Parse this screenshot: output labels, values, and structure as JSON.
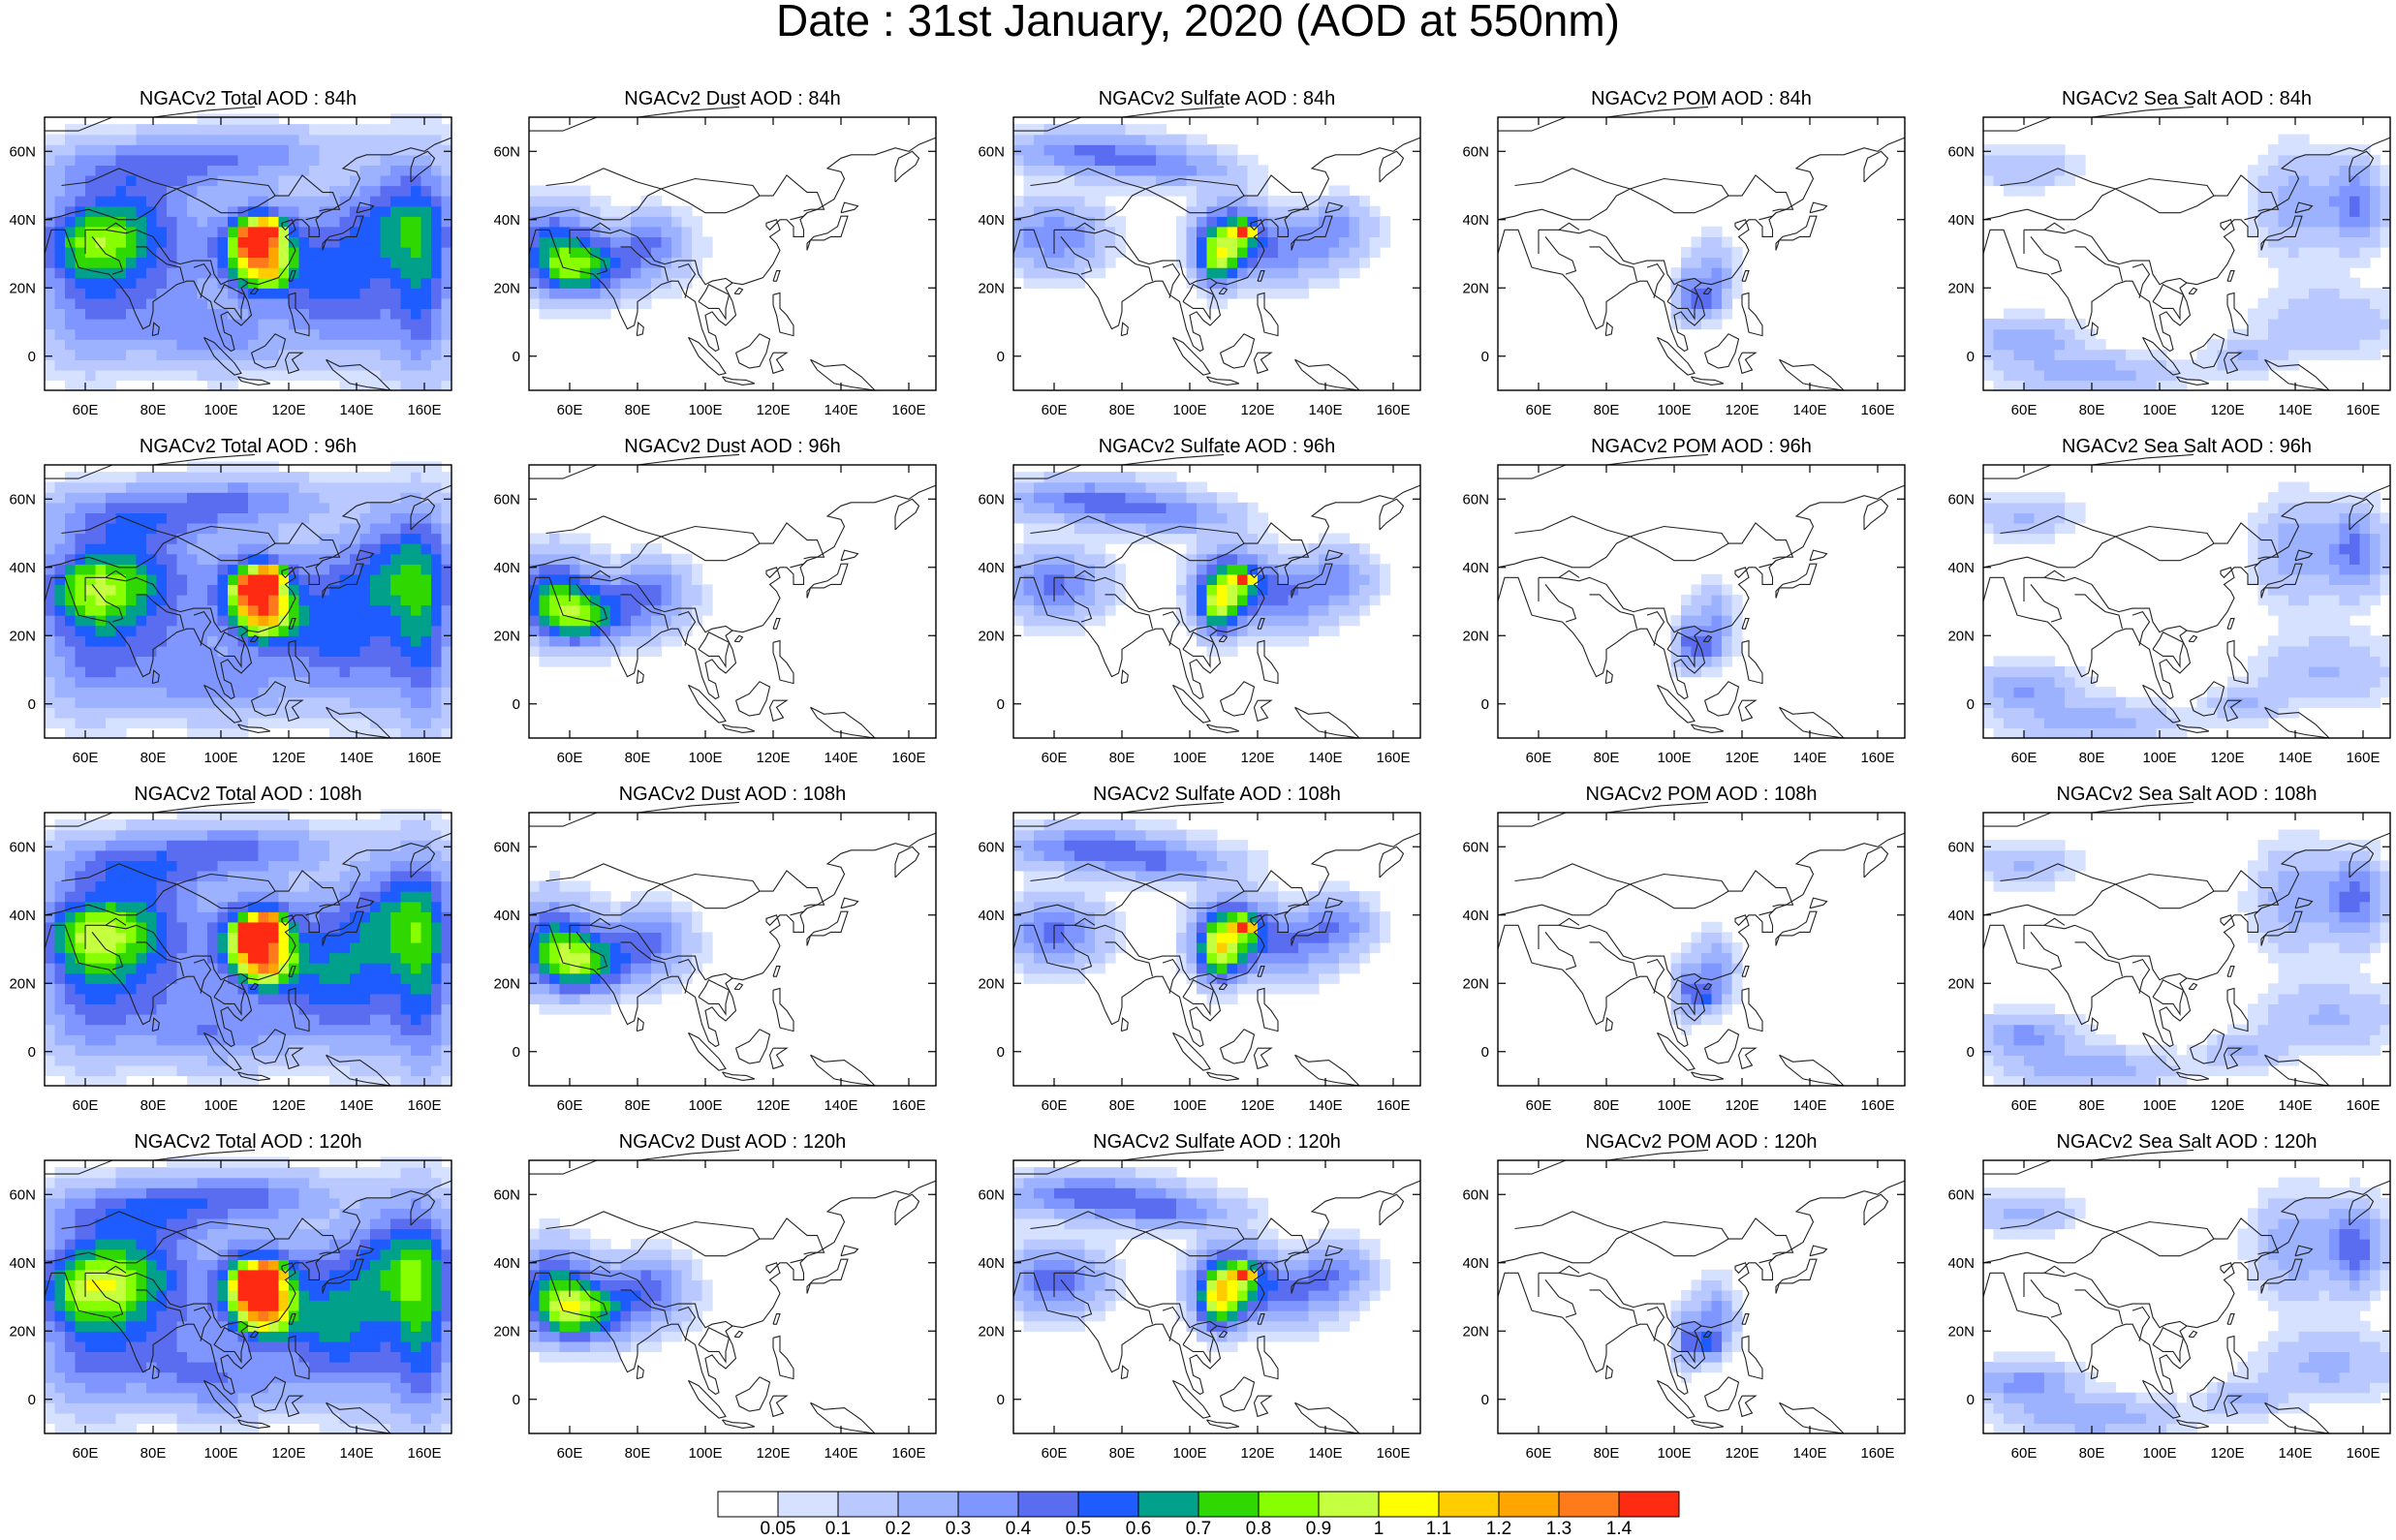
{
  "title": "Date : 31st January, 2020 (AOD at 550nm)",
  "rows": [
    [
      "NGACv2 Total AOD : 84h",
      "NGACv2 Dust AOD : 84h",
      "NGACv2 Sulfate AOD : 84h",
      "NGACv2 POM AOD : 84h",
      "NGACv2 Sea Salt AOD : 84h"
    ],
    [
      "NGACv2 Total AOD : 96h",
      "NGACv2 Dust AOD : 96h",
      "NGACv2 Sulfate AOD : 96h",
      "NGACv2 POM AOD : 96h",
      "NGACv2 Sea Salt AOD : 96h"
    ],
    [
      "NGACv2 Total AOD : 108h",
      "NGACv2 Dust AOD : 108h",
      "NGACv2 Sulfate AOD : 108h",
      "NGACv2 POM AOD : 108h",
      "NGACv2 Sea Salt AOD : 108h"
    ],
    [
      "NGACv2 Total AOD : 120h",
      "NGACv2 Dust AOD : 120h",
      "NGACv2 Sulfate AOD : 120h",
      "NGACv2 POM AOD : 120h",
      "NGACv2 Sea Salt  AOD : 120h"
    ]
  ],
  "lon_ticks": [
    "60E",
    "80E",
    "100E",
    "120E",
    "140E",
    "160E"
  ],
  "lon_values": [
    60,
    80,
    100,
    120,
    140,
    160
  ],
  "lat_ticks": [
    "60N",
    "40N",
    "20N",
    "0"
  ],
  "lat_values": [
    60,
    40,
    20,
    0
  ],
  "lon_range": [
    48,
    168
  ],
  "lat_range": [
    -10,
    70
  ],
  "colorbar": {
    "labels": [
      "0.05",
      "0.1",
      "0.2",
      "0.3",
      "0.4",
      "0.5",
      "0.6",
      "0.7",
      "0.8",
      "0.9",
      "1",
      "1.1",
      "1.2",
      "1.3",
      "1.4"
    ],
    "colors": [
      "#ffffff",
      "#d6e0ff",
      "#b9c9ff",
      "#9cb2ff",
      "#7f95ff",
      "#5a6cf0",
      "#1f5cff",
      "#00a08a",
      "#2ed800",
      "#88ff00",
      "#c4ff40",
      "#ffff00",
      "#ffcc00",
      "#ffa500",
      "#ff7a1a",
      "#ff2a12"
    ]
  }
}
